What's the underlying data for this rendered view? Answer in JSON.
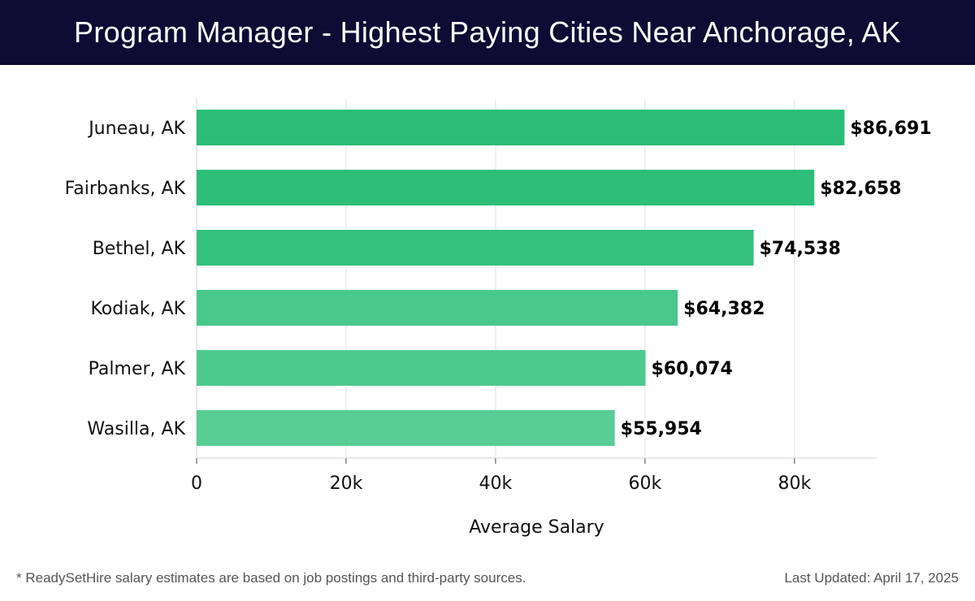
{
  "header": {
    "title": "Program Manager - Highest Paying Cities Near Anchorage, AK"
  },
  "chart_data": {
    "type": "bar",
    "orientation": "horizontal",
    "title": "Program Manager - Highest Paying Cities Near Anchorage, AK",
    "categories": [
      "Juneau, AK",
      "Fairbanks, AK",
      "Bethel, AK",
      "Kodiak, AK",
      "Palmer, AK",
      "Wasilla, AK"
    ],
    "values": [
      86691,
      82658,
      74538,
      64382,
      60074,
      55954
    ],
    "value_labels": [
      "$86,691",
      "$82,658",
      "$74,538",
      "$64,382",
      "$60,074",
      "$55,954"
    ],
    "xlabel": "Average Salary",
    "ylabel": "",
    "xlim": [
      0,
      91000
    ],
    "x_ticks": [
      0,
      20000,
      40000,
      60000,
      80000
    ],
    "x_tick_labels": [
      "0",
      "20k",
      "40k",
      "60k",
      "80k"
    ],
    "grid": true,
    "colors": [
      "#29bd75",
      "#2dbf78",
      "#36c27d",
      "#48c88a",
      "#4fca8e",
      "#57cd94"
    ]
  },
  "footer": {
    "note": "* ReadySetHire salary estimates are based on job postings and third-party sources.",
    "updated": "Last Updated: April 17, 2025"
  }
}
